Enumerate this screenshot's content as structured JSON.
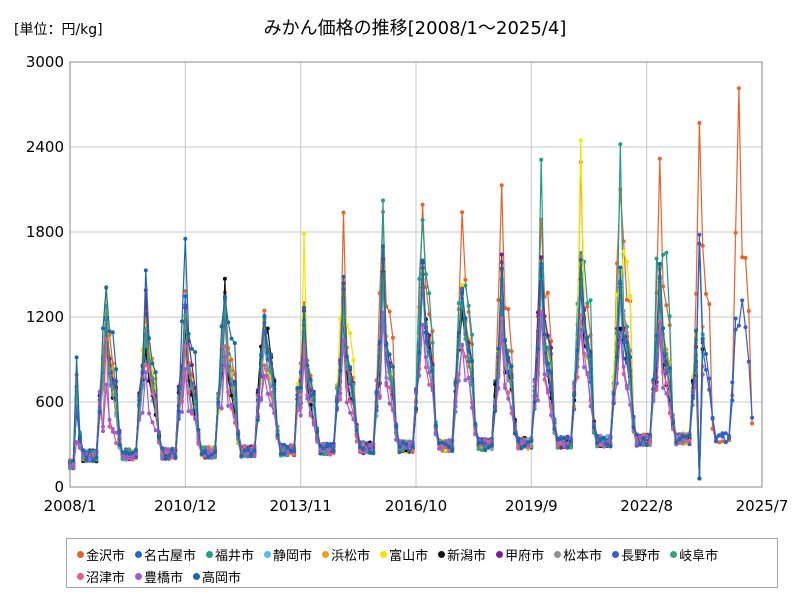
{
  "chart_data": {
    "type": "line",
    "title": "みかん価格の推移[2008/1～2025/4]",
    "unit_label": "[単位：円/kg]",
    "ylim": [
      0,
      3000
    ],
    "yticks": [
      "0",
      "600",
      "1200",
      "1800",
      "2400",
      "3000"
    ],
    "xlim": [
      "2008/1",
      "2025/7"
    ],
    "xticks": [
      "2008/1",
      "2010/12",
      "2013/11",
      "2016/10",
      "2019/9",
      "2022/8",
      "2025/7"
    ],
    "grid": true,
    "legend_position": "bottom",
    "series": [
      {
        "name": "金沢市",
        "color": "#e8632b",
        "peaks": [
          1470,
          1380,
          1280,
          1500,
          1460,
          1270,
          1420,
          1960,
          2100,
          2070,
          1960,
          2140,
          2020,
          2400,
          2270,
          2440,
          2610,
          2900
        ]
      },
      {
        "name": "名古屋市",
        "color": "#2166d9",
        "peaks": [
          1340,
          1260,
          1220,
          1380,
          1280,
          1180,
          1260,
          1300,
          1560,
          1600,
          1400,
          1500,
          1520,
          1460,
          1400,
          1500,
          1900,
          0
        ]
      },
      {
        "name": "福井市",
        "color": "#1f9e89",
        "peaks": [
          1200,
          1180,
          1100,
          1200,
          1300,
          1150,
          1250,
          1400,
          2230,
          2080,
          1500,
          1700,
          2330,
          1750,
          2620,
          1600,
          0,
          0
        ]
      },
      {
        "name": "静岡市",
        "color": "#5bb7e8",
        "peaks": [
          1100,
          1050,
          1000,
          1100,
          1200,
          1000,
          1100,
          1200,
          1500,
          1500,
          1300,
          1400,
          1600,
          1500,
          1400,
          1450,
          0,
          0
        ]
      },
      {
        "name": "浜松市",
        "color": "#e8a317",
        "peaks": [
          1300,
          1400,
          1200,
          1300,
          1350,
          1200,
          1300,
          1450,
          1700,
          1650,
          1500,
          1600,
          1700,
          1700,
          1600,
          1650,
          0,
          0
        ]
      },
      {
        "name": "富山市",
        "color": "#f2e600",
        "peaks": [
          1200,
          1420,
          1200,
          1250,
          1300,
          1150,
          1840,
          1400,
          1600,
          1550,
          1450,
          1550,
          1650,
          2460,
          1500,
          1550,
          0,
          0
        ]
      },
      {
        "name": "新潟市",
        "color": "#111111",
        "peaks": [
          1100,
          1100,
          1050,
          1150,
          1520,
          1000,
          1100,
          1300,
          1600,
          1540,
          1250,
          1300,
          1550,
          1480,
          1200,
          1400,
          0,
          0
        ]
      },
      {
        "name": "甲府市",
        "color": "#7f1b8c",
        "peaks": [
          1250,
          1300,
          1400,
          1350,
          1400,
          1200,
          1300,
          1450,
          1650,
          1600,
          1450,
          1800,
          1700,
          1700,
          1500,
          1500,
          0,
          0
        ]
      },
      {
        "name": "松本市",
        "color": "#8f8f8f",
        "peaks": [
          1150,
          1200,
          1150,
          1250,
          1300,
          1100,
          1200,
          1350,
          1550,
          1500,
          1350,
          1400,
          1550,
          1750,
          1400,
          1450,
          0,
          0
        ]
      },
      {
        "name": "長野市",
        "color": "#3c5cc8",
        "peaks": [
          1200,
          1250,
          1150,
          1300,
          1350,
          1150,
          1250,
          1400,
          1600,
          1550,
          1400,
          1450,
          1600,
          1550,
          1450,
          1500,
          1900,
          1180
        ]
      },
      {
        "name": "岐阜市",
        "color": "#3aa17a",
        "peaks": [
          1250,
          1300,
          1200,
          1300,
          1400,
          1200,
          1300,
          1450,
          1650,
          1600,
          1500,
          1550,
          1650,
          1600,
          1500,
          1550,
          0,
          0
        ]
      },
      {
        "name": "沼津市",
        "color": "#e85a8f",
        "peaks": [
          650,
          1150,
          900,
          1000,
          1100,
          900,
          1000,
          1100,
          1300,
          1250,
          1100,
          1200,
          1300,
          1250,
          1150,
          1200,
          0,
          0
        ]
      },
      {
        "name": "豊橋市",
        "color": "#9a5ed1",
        "peaks": [
          700,
          800,
          850,
          900,
          1000,
          850,
          950,
          1050,
          1250,
          1200,
          1050,
          1100,
          1250,
          1200,
          1100,
          1150,
          0,
          0
        ]
      },
      {
        "name": "高岡市",
        "color": "#1a6aa8",
        "peaks": [
          1740,
          1460,
          1680,
          1790,
          1450,
          1250,
          1350,
          1500,
          1700,
          1650,
          1500,
          1550,
          1700,
          1650,
          1550,
          1600,
          0,
          0
        ]
      }
    ]
  }
}
